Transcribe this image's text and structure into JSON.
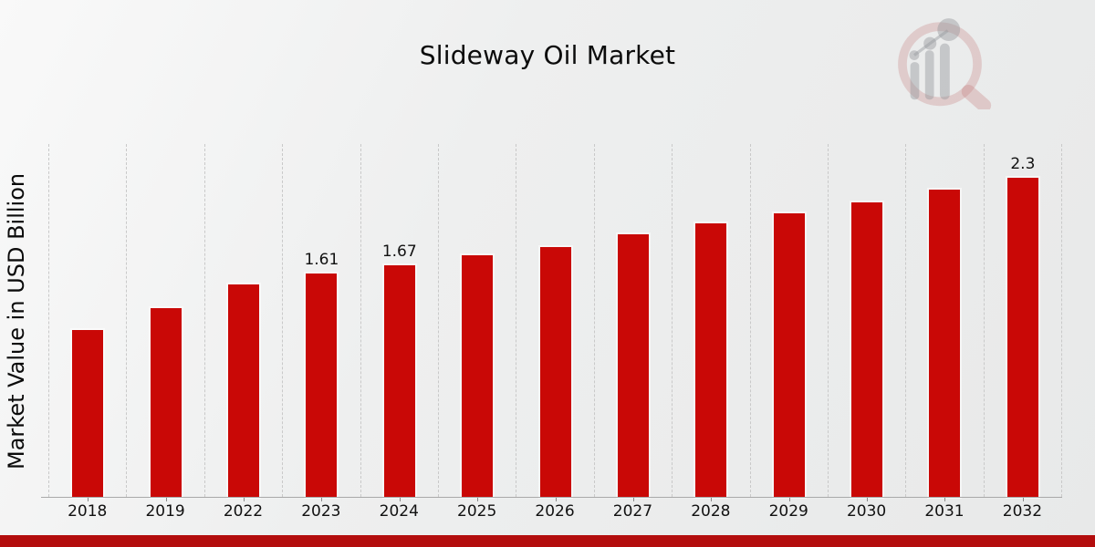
{
  "title": "Slideway Oil Market",
  "ylabel": "Market Value in USD Billion",
  "watermark": {
    "icon": "magnifier-bar-chart-logo"
  },
  "chart_data": {
    "type": "bar",
    "title": "Slideway Oil Market",
    "xlabel": "",
    "ylabel": "Market Value in USD Billion",
    "categories": [
      "2018",
      "2019",
      "2022",
      "2023",
      "2024",
      "2025",
      "2026",
      "2027",
      "2028",
      "2029",
      "2030",
      "2031",
      "2032"
    ],
    "values": [
      1.2,
      1.36,
      1.53,
      1.61,
      1.67,
      1.74,
      1.8,
      1.89,
      1.97,
      2.04,
      2.12,
      2.21,
      2.3
    ],
    "data_labels": [
      "",
      "",
      "",
      "1.61",
      "1.67",
      "",
      "",
      "",
      "",
      "",
      "",
      "",
      "2.3"
    ],
    "ylim": [
      0,
      2.54
    ],
    "grid": "vertical-dashed",
    "legend": "none",
    "colors": {
      "bar": "#c90806",
      "bottom_band": "#b30d0d",
      "gridline": "#c9c9c9",
      "axis": "#a9a9a9",
      "text": "#111111"
    }
  }
}
